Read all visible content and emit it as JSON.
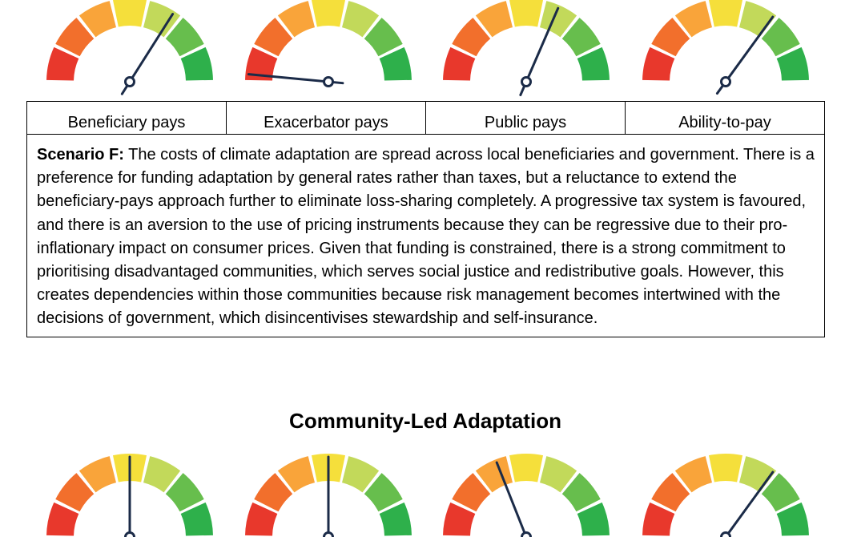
{
  "gauge_colors": [
    "#e8382c",
    "#f26f2c",
    "#f9a43a",
    "#f5df3b",
    "#c2d95a",
    "#67be4d",
    "#2eb04b"
  ],
  "needle_color": "#1b2b48",
  "gauges_top": [
    {
      "pos_pct": 0.68
    },
    {
      "pos_pct": 0.03
    },
    {
      "pos_pct": 0.63
    },
    {
      "pos_pct": 0.7
    }
  ],
  "gauges_bottom": [
    {
      "pos_pct": 0.5
    },
    {
      "pos_pct": 0.5
    },
    {
      "pos_pct": 0.38
    },
    {
      "pos_pct": 0.7
    }
  ],
  "table": {
    "headers": [
      "Beneficiary pays",
      "Exacerbator pays",
      "Public pays",
      "Ability-to-pay"
    ],
    "scenario_label": "Scenario F:",
    "scenario_text": " The costs of climate adaptation are spread across local beneficiaries and government. There is a preference for funding adaptation by general rates rather than taxes, but a reluctance to extend the beneficiary-pays approach further to eliminate loss-sharing completely. A progressive tax system is favoured, and there is an aversion to the use of pricing instruments because they can be regressive due to their pro-inflationary impact on consumer prices. Given that funding is constrained, there is a strong commitment to prioritising disadvantaged communities, which serves social justice and redistributive goals. However, this creates dependencies within those communities because risk management becomes intertwined with the decisions of government, which disincentivises stewardship and self-insurance."
  },
  "section_title": "Community-Led Adaptation"
}
